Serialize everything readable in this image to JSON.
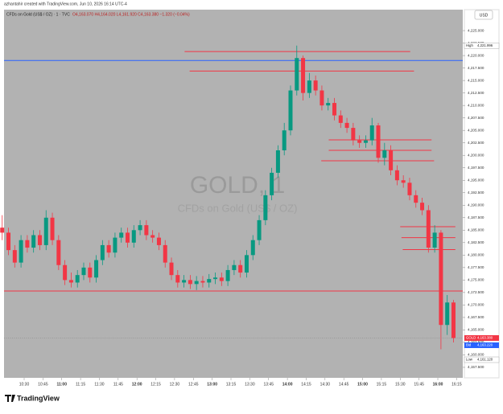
{
  "header": {
    "credit": "azhantahir created with TradingView.com, Jun 10, 2026 16:14 UTC-4",
    "legend": "CFDs on Gold (US$ / OZ) · 1 · TVC",
    "ohlc": "O4,163.070 H4,164.020 L4,161.920 C4,163.380 −1.320 (−0.04%)",
    "currency": "USD"
  },
  "watermark": {
    "symbol": "GOLD, 1",
    "description": "CFDs on Gold (US$ / OZ)"
  },
  "footer": {
    "brand": "TradingView"
  },
  "chart_data": {
    "type": "candlestick",
    "x": [
      "10:10",
      "10:15",
      "10:20",
      "10:25",
      "10:30",
      "10:35",
      "10:40",
      "10:45",
      "10:50",
      "10:55",
      "11:00",
      "11:05",
      "11:10",
      "11:15",
      "11:20",
      "11:25",
      "11:30",
      "11:35",
      "11:40",
      "11:45",
      "11:50",
      "11:55",
      "12:00",
      "12:05",
      "12:10",
      "12:15",
      "12:20",
      "12:25",
      "12:30",
      "12:35",
      "12:40",
      "12:45",
      "12:50",
      "12:55",
      "13:00",
      "13:05",
      "13:10",
      "13:15",
      "13:20",
      "13:25",
      "13:30",
      "13:35",
      "13:40",
      "13:45",
      "13:50",
      "13:55",
      "14:00",
      "14:05",
      "14:10",
      "14:15",
      "14:20",
      "14:25",
      "14:30",
      "14:35",
      "14:40",
      "14:45",
      "14:50",
      "14:55",
      "15:00",
      "15:05",
      "15:10",
      "15:15",
      "15:20",
      "15:25",
      "15:30",
      "15:35",
      "15:40",
      "15:45",
      "15:50",
      "15:55",
      "16:00",
      "16:05",
      "16:10"
    ],
    "open": [
      4185.5,
      4184.5,
      4181,
      4178.5,
      4183,
      4181.5,
      4184,
      4182,
      4187.5,
      4183,
      4178,
      4175,
      4174.5,
      4176,
      4177.5,
      4175.5,
      4179,
      4182,
      4180.5,
      4183.5,
      4184.5,
      4182.5,
      4185,
      4186,
      4184,
      4183.5,
      4182,
      4178.5,
      4176,
      4174.5,
      4175,
      4174.2,
      4174.8,
      4174.5,
      4175.2,
      4175.5,
      4174.8,
      4177,
      4178,
      4176.5,
      4180,
      4183,
      4187,
      4192,
      4196.5,
      4201,
      4205,
      4213,
      4219.5,
      4212.5,
      4215,
      4213,
      4210,
      4210.5,
      4208,
      4206.5,
      4205.5,
      4203,
      4202.5,
      4203,
      4206,
      4199.5,
      4201,
      4197,
      4195,
      4194.5,
      4192,
      4190.5,
      4189,
      4181.5,
      4184.5,
      4166,
      4170.5
    ],
    "high": [
      4188,
      4185.5,
      4182,
      4184,
      4184,
      4185,
      4185,
      4189,
      4188.5,
      4184,
      4179,
      4176.5,
      4177,
      4178.5,
      4178.5,
      4180,
      4183,
      4183,
      4184.5,
      4185.5,
      4185.5,
      4186,
      4187,
      4187,
      4185,
      4184.5,
      4183,
      4179.5,
      4177,
      4176,
      4176,
      4175.8,
      4175.8,
      4176.2,
      4176.5,
      4176.5,
      4178,
      4179,
      4179,
      4181,
      4184,
      4188,
      4193,
      4197.5,
      4202,
      4206.5,
      4214,
      4221.996,
      4220,
      4216.5,
      4216,
      4214,
      4211.5,
      4211.5,
      4209,
      4207.5,
      4206.5,
      4204,
      4204,
      4207.5,
      4206.5,
      4202.5,
      4202,
      4198,
      4196,
      4195.5,
      4193,
      4191.5,
      4190,
      4186,
      4185,
      4172,
      4171
    ],
    "low": [
      4183,
      4180,
      4177.5,
      4177.5,
      4180.5,
      4180.5,
      4181,
      4181,
      4182,
      4177,
      4174,
      4173.5,
      4173.5,
      4175,
      4174.5,
      4174.5,
      4178,
      4179.5,
      4179.5,
      4182.5,
      4181.5,
      4181.5,
      4184,
      4183,
      4182.5,
      4181,
      4177.5,
      4175,
      4173.5,
      4173.5,
      4173.2,
      4173,
      4173.5,
      4173.5,
      4174.2,
      4173.8,
      4173.8,
      4176,
      4175.5,
      4175.5,
      4179,
      4182,
      4186,
      4191,
      4195.5,
      4200,
      4204,
      4212,
      4211,
      4211.5,
      4212,
      4209,
      4209,
      4207,
      4205.5,
      4204.5,
      4202,
      4201.5,
      4201.5,
      4202,
      4198.5,
      4198,
      4196,
      4194,
      4193.5,
      4191,
      4189.5,
      4188,
      4180.5,
      4180.5,
      4161.12,
      4164,
      4162.5
    ],
    "close": [
      4184.5,
      4181,
      4178.5,
      4183,
      4181.5,
      4184,
      4182,
      4187.5,
      4183,
      4178,
      4175,
      4174.5,
      4176,
      4177.5,
      4175.5,
      4179,
      4182,
      4180.5,
      4183.5,
      4184.5,
      4182.5,
      4185,
      4186,
      4184,
      4183.5,
      4182,
      4178.5,
      4176,
      4174.5,
      4175,
      4174.2,
      4174.8,
      4174.5,
      4175.2,
      4175.5,
      4174.8,
      4177,
      4178,
      4176.5,
      4180,
      4183,
      4187,
      4192,
      4196.5,
      4201,
      4205,
      4213,
      4219.5,
      4212.5,
      4215,
      4213,
      4210,
      4210.5,
      4208,
      4206.5,
      4205.5,
      4203,
      4202.5,
      4203,
      4206,
      4199.5,
      4201,
      4197,
      4195,
      4194.5,
      4192,
      4190.5,
      4189,
      4181.5,
      4184.5,
      4166,
      4170.5,
      4163.38
    ],
    "up_color": "#089981",
    "down_color": "#f23645",
    "ylim": [
      4155.4,
      4229.2
    ],
    "yticks": [
      {
        "value": 4225,
        "label": "4,225.000"
      },
      {
        "value": 4222.5,
        "label": "4,222.500"
      },
      {
        "value": 4220,
        "label": "4,220.000"
      },
      {
        "value": 4217.5,
        "label": "4,217.500"
      },
      {
        "value": 4215,
        "label": "4,215.000"
      },
      {
        "value": 4212.5,
        "label": "4,212.500"
      },
      {
        "value": 4210,
        "label": "4,210.000"
      },
      {
        "value": 4207.5,
        "label": "4,207.500"
      },
      {
        "value": 4205,
        "label": "4,205.000"
      },
      {
        "value": 4202.5,
        "label": "4,202.500"
      },
      {
        "value": 4200,
        "label": "4,200.000"
      },
      {
        "value": 4197.5,
        "label": "4,197.500"
      },
      {
        "value": 4195,
        "label": "4,195.000"
      },
      {
        "value": 4192.5,
        "label": "4,192.500"
      },
      {
        "value": 4190,
        "label": "4,190.000"
      },
      {
        "value": 4187.5,
        "label": "4,187.500"
      },
      {
        "value": 4185,
        "label": "4,185.000"
      },
      {
        "value": 4182.5,
        "label": "4,182.500"
      },
      {
        "value": 4180,
        "label": "4,180.000"
      },
      {
        "value": 4177.5,
        "label": "4,177.500"
      },
      {
        "value": 4175,
        "label": "4,175.000"
      },
      {
        "value": 4172.5,
        "label": "4,172.500"
      },
      {
        "value": 4170,
        "label": "4,170.000"
      },
      {
        "value": 4167.5,
        "label": "4,167.500"
      },
      {
        "value": 4165,
        "label": "4,165.000"
      },
      {
        "value": 4162.5,
        "label": "4,162.500"
      },
      {
        "value": 4160,
        "label": "4,160.000"
      },
      {
        "value": 4157.5,
        "label": "4,157.500"
      }
    ],
    "xticks": [
      "10:30",
      "10:45",
      "11:00",
      "11:15",
      "11:30",
      "11:45",
      "12:00",
      "12:15",
      "12:30",
      "12:45",
      "13:00",
      "13:15",
      "13:30",
      "13:45",
      "14:00",
      "14:15",
      "14:30",
      "14:45",
      "15:00",
      "15:15",
      "15:30",
      "15:45",
      "16:00",
      "16:15"
    ],
    "levels": [
      {
        "value": 4219,
        "color": "#2962ff"
      },
      {
        "value": 4172.8,
        "color": "#f23645"
      },
      {
        "value": 4220.8,
        "color": "#f23645",
        "from": "12:38",
        "to": "15:38"
      },
      {
        "value": 4216.9,
        "color": "#f23645",
        "from": "12:42",
        "to": "15:41"
      },
      {
        "value": 4203.1,
        "color": "#f23645",
        "from": "14:33",
        "to": "15:55"
      },
      {
        "value": 4201,
        "color": "#f23645",
        "from": "14:33",
        "to": "15:55"
      },
      {
        "value": 4198.9,
        "color": "#f23645",
        "from": "14:27",
        "to": "15:57"
      },
      {
        "value": 4185.7,
        "color": "#f23645",
        "from": "15:30",
        "to": "16:14"
      },
      {
        "value": 4183.5,
        "color": "#f23645",
        "from": "15:31",
        "to": "16:14"
      },
      {
        "value": 4181.1,
        "color": "#f23645",
        "from": "15:32",
        "to": "16:14"
      }
    ],
    "price_labels": [
      {
        "name": "High",
        "value": 4221.996,
        "label": "4,221.996",
        "color": "#ffffff"
      },
      {
        "name": "GOLD",
        "value": 4163.38,
        "label": "4,163.380",
        "color": "#f23645"
      },
      {
        "name": "Bid",
        "value": 4163.22,
        "label": "4,163.220",
        "color": "#2962ff"
      },
      {
        "name": "Low",
        "value": 4161.12,
        "label": "4,161.120",
        "color": "#ffffff"
      }
    ]
  }
}
